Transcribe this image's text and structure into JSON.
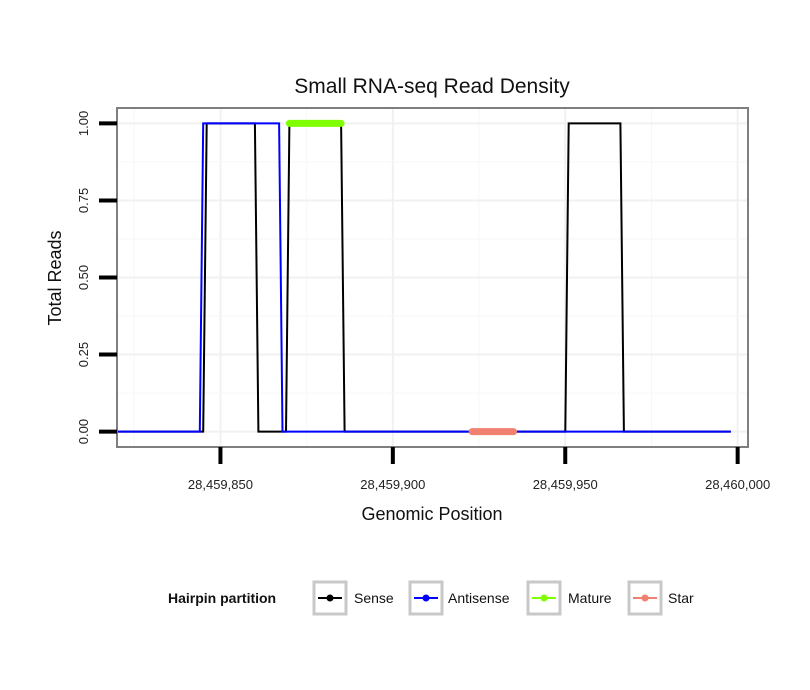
{
  "chart_data": {
    "type": "line",
    "title": "Small RNA-seq Read Density",
    "xlabel": "Genomic Position",
    "ylabel": "Total Reads",
    "xlim": [
      28459820,
      28460003
    ],
    "ylim": [
      -0.05,
      1.05
    ],
    "x_ticks": [
      28459850,
      28459900,
      28459950,
      28460000
    ],
    "x_tick_labels": [
      "28,459,850",
      "28,459,900",
      "28,459,950",
      "28,460,000"
    ],
    "y_ticks": [
      0,
      0.25,
      0.5,
      0.75,
      1
    ],
    "y_tick_labels": [
      "0.00",
      "0.25",
      "0.50",
      "0.75",
      "1.00"
    ],
    "grid": true,
    "legend_title": "Hairpin partition",
    "legend_position": "bottom",
    "series": [
      {
        "name": "Sense",
        "color": "#000000",
        "x": [
          28459820,
          28459845,
          28459846,
          28459855,
          28459860,
          28459861,
          28459867,
          28459869,
          28459870,
          28459885,
          28459886,
          28459950,
          28459951,
          28459966,
          28459967,
          28459998
        ],
        "y": [
          0,
          0,
          1,
          1,
          1,
          0,
          0,
          0,
          1,
          1,
          0,
          0,
          1,
          1,
          0,
          0
        ]
      },
      {
        "name": "Antisense",
        "color": "#0000ff",
        "x": [
          28459820,
          28459844,
          28459845,
          28459867,
          28459868,
          28459998
        ],
        "y": [
          0,
          0,
          1,
          1,
          0,
          0
        ]
      },
      {
        "name": "Mature",
        "color": "#7fff00",
        "x": [
          28459870,
          28459885
        ],
        "y": [
          1,
          1
        ]
      },
      {
        "name": "Star",
        "color": "#f08070",
        "x": [
          28459923,
          28459935
        ],
        "y": [
          0,
          0
        ]
      }
    ]
  }
}
